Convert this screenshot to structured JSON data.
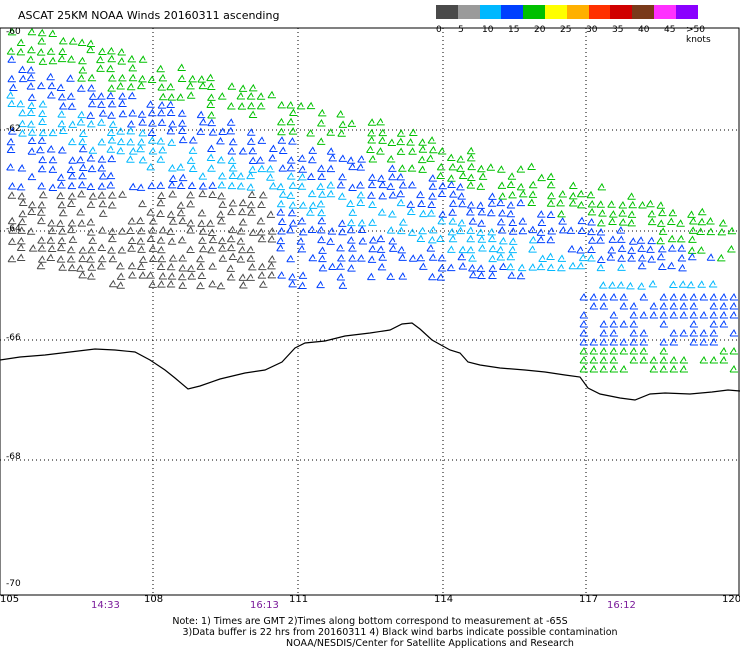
{
  "title": "ASCAT 25KM NOAA Winds 20160311 ascending",
  "lat_labels": [
    "-60",
    "-62",
    "-64",
    "-66",
    "-68",
    "-70"
  ],
  "lon_labels": [
    "105",
    "108",
    "111",
    "114",
    "117",
    "120"
  ],
  "time_labels": [
    "14:33",
    "16:13",
    "16:12"
  ],
  "notes": [
    "Note: 1) Times are GMT 2)Times along bottom correspond to measurement at -65S",
    "3)Data buffer is 22 hrs from 20160311 4) Black wind barbs indicate possible contamination",
    "NOAA/NESDIS/Center for Satellite Applications and Research"
  ],
  "scale": {
    "labels": [
      "0",
      "5",
      "10",
      "15",
      "20",
      "25",
      "30",
      "35",
      "40",
      "45",
      ">50 knots"
    ],
    "colors": [
      "#4a4a4a",
      "#9a9a9a",
      "#00b8ff",
      "#0040ff",
      "#00c000",
      "#ffff00",
      "#ffb000",
      "#ff3000",
      "#d00000",
      "#7a3a1a",
      "#ff30ff",
      "#8a00ff"
    ]
  }
}
